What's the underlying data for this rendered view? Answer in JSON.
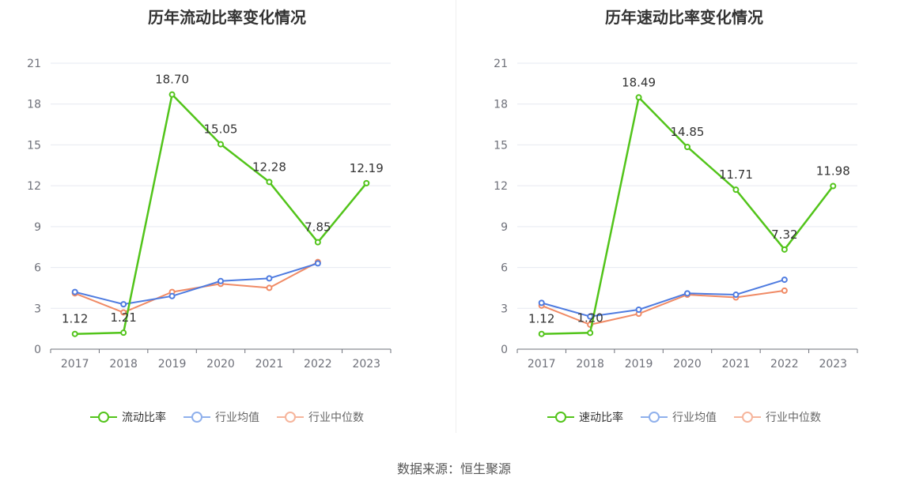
{
  "source": "数据来源：恒生聚源",
  "colors": {
    "main": "#52c41a",
    "avg": "#4e7be0",
    "median": "#f08a65",
    "avg_legend": "#8fb0ec",
    "median_legend": "#f6b59c"
  },
  "chart_data": [
    {
      "type": "line",
      "title": "历年流动比率变化情况",
      "categories": [
        "2017",
        "2018",
        "2019",
        "2020",
        "2021",
        "2022",
        "2023"
      ],
      "ylim": [
        0,
        21
      ],
      "yticks": [
        0,
        3,
        6,
        9,
        12,
        15,
        18,
        21
      ],
      "grid": true,
      "legend_position": "bottom",
      "series": [
        {
          "name": "流动比率",
          "values": [
            1.12,
            1.21,
            18.7,
            15.05,
            12.28,
            7.85,
            12.19
          ],
          "labels": [
            "1.12",
            "1.21",
            "18.70",
            "15.05",
            "12.28",
            "7.85",
            "12.19"
          ]
        },
        {
          "name": "行业均值",
          "values": [
            4.2,
            3.3,
            3.9,
            5.0,
            5.2,
            6.3,
            null
          ]
        },
        {
          "name": "行业中位数",
          "values": [
            4.1,
            2.7,
            4.2,
            4.8,
            4.5,
            6.4,
            null
          ]
        }
      ]
    },
    {
      "type": "line",
      "title": "历年速动比率变化情况",
      "categories": [
        "2017",
        "2018",
        "2019",
        "2020",
        "2021",
        "2022",
        "2023"
      ],
      "ylim": [
        0,
        21
      ],
      "yticks": [
        0,
        3,
        6,
        9,
        12,
        15,
        18,
        21
      ],
      "grid": true,
      "legend_position": "bottom",
      "series": [
        {
          "name": "速动比率",
          "values": [
            1.12,
            1.2,
            18.49,
            14.85,
            11.71,
            7.32,
            11.98
          ],
          "labels": [
            "1.12",
            "1.20",
            "18.49",
            "14.85",
            "11.71",
            "7.32",
            "11.98"
          ]
        },
        {
          "name": "行业均值",
          "values": [
            3.4,
            2.4,
            2.9,
            4.1,
            4.0,
            5.1,
            null
          ]
        },
        {
          "name": "行业中位数",
          "values": [
            3.2,
            1.8,
            2.6,
            4.0,
            3.8,
            4.3,
            null
          ]
        }
      ]
    }
  ]
}
